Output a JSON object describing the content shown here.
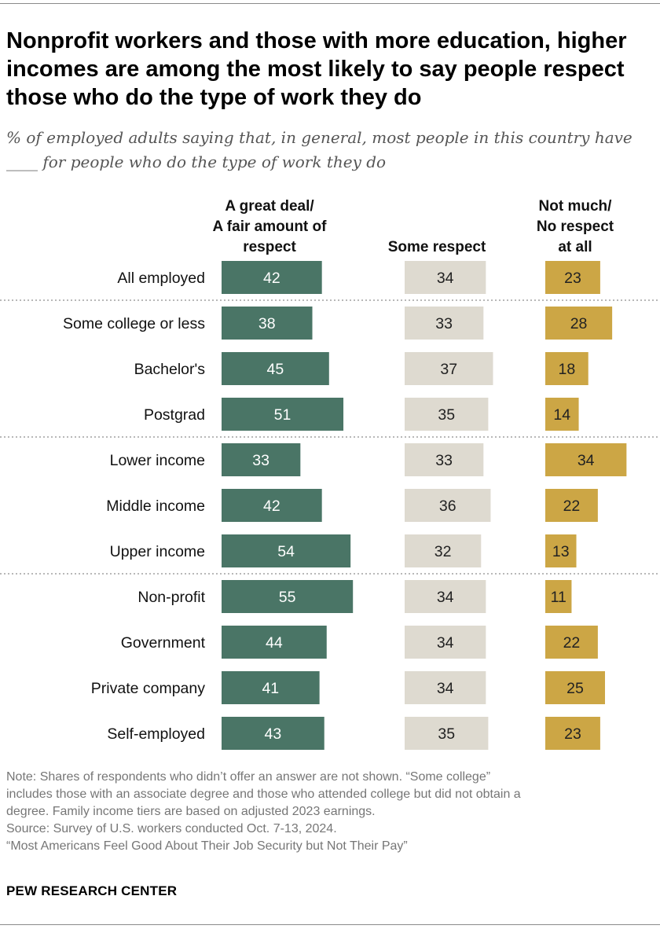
{
  "title": "Nonprofit workers and those with more education, higher incomes are among the most likely to say people respect those who do the type of work they do",
  "subtitle": "% of employed adults saying that, in general, most people in this country have ____ for people who do the type of work they do",
  "note": {
    "lines": [
      "Note: Shares of respondents who didn’t offer an answer are not shown. “Some college”",
      "includes those with an associate degree and those who attended college but did not obtain a",
      "degree. Family income tiers are based on adjusted 2023 earnings.",
      "Source: Survey of U.S. workers conducted Oct. 7-13, 2024.",
      "“Most Americans Feel Good About Their Job Security but Not Their Pay”"
    ]
  },
  "credit": "PEW RESEARCH CENTER",
  "colors": {
    "great_deal": "#4a7566",
    "some": "#dedad0",
    "not_much": "#cca645",
    "text_light": "#ffffff",
    "text_dark": "#222222",
    "separator": "#a0a0a0"
  },
  "chart_data": {
    "type": "bar",
    "orientation": "horizontal",
    "layout": "small-multiples",
    "categories": [
      "All employed",
      "Some college or less",
      "Bachelor's",
      "Postgrad",
      "Lower income",
      "Middle income",
      "Upper income",
      "Non-profit",
      "Government",
      "Private company",
      "Self-employed"
    ],
    "series": [
      {
        "name": [
          "A great deal/",
          "A fair amount of",
          "respect"
        ],
        "color": "#4a7566",
        "values": [
          42,
          38,
          45,
          51,
          33,
          42,
          54,
          55,
          44,
          41,
          43
        ]
      },
      {
        "name": [
          "Some respect"
        ],
        "color": "#dedad0",
        "values": [
          34,
          33,
          37,
          35,
          33,
          36,
          32,
          34,
          34,
          34,
          35
        ]
      },
      {
        "name": [
          "Not much/",
          "No respect",
          "at all"
        ],
        "color": "#cca645",
        "values": [
          23,
          28,
          18,
          14,
          34,
          22,
          13,
          11,
          22,
          25,
          23
        ]
      }
    ],
    "groups_separated_after": [
      0,
      3,
      6
    ],
    "grid": false,
    "xlim": [
      0,
      100
    ],
    "unit": "%"
  }
}
